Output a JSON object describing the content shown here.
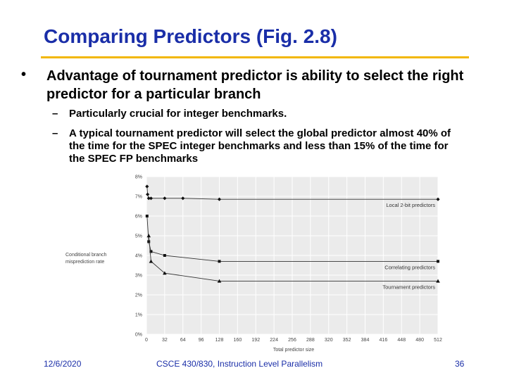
{
  "slide": {
    "title": "Comparing Predictors (Fig. 2.8)",
    "bullet": "Advantage of tournament predictor is ability to select the right predictor for a particular branch",
    "sub_bullets": [
      "Particularly crucial for integer benchmarks.",
      "A typical tournament predictor will select the global predictor almost 40% of the time for the SPEC integer benchmarks and less than 15% of the time for the SPEC FP benchmarks"
    ],
    "bullet_glyph": "•",
    "dash_glyph": "–"
  },
  "footer": {
    "date": "12/6/2020",
    "course": "CSCE 430/830, Instruction Level Parallelism",
    "page": "36"
  },
  "colors": {
    "title": "#1a2ea8",
    "rule": "#f2b705",
    "plot_bg": "#ebebeb"
  },
  "chart_data": {
    "type": "line",
    "title": "",
    "xlabel": "Total predictor size",
    "ylabel_lines": [
      "Conditional branch",
      "misprediction rate"
    ],
    "x_ticks": [
      "0",
      "32",
      "64",
      "96",
      "128",
      "160",
      "192",
      "224",
      "256",
      "288",
      "320",
      "352",
      "384",
      "416",
      "448",
      "480",
      "512"
    ],
    "y_ticks": [
      "0%",
      "1%",
      "2%",
      "3%",
      "4%",
      "5%",
      "6%",
      "7%",
      "8%"
    ],
    "xlim": [
      0,
      512
    ],
    "ylim": [
      0,
      8
    ],
    "grid": true,
    "series": [
      {
        "name": "Local 2-bit predictors",
        "x": [
          1,
          2,
          4,
          8,
          32,
          64,
          128,
          512
        ],
        "y": [
          7.5,
          7.1,
          6.9,
          6.9,
          6.9,
          6.9,
          6.85,
          6.85
        ]
      },
      {
        "name": "Correlating predictors",
        "x": [
          1,
          4,
          8,
          32,
          128,
          512
        ],
        "y": [
          6.0,
          4.7,
          4.2,
          4.0,
          3.7,
          3.7
        ]
      },
      {
        "name": "Tournament predictors",
        "x": [
          4,
          8,
          32,
          128,
          512
        ],
        "y": [
          5.0,
          3.7,
          3.1,
          2.7,
          2.7
        ]
      }
    ]
  }
}
